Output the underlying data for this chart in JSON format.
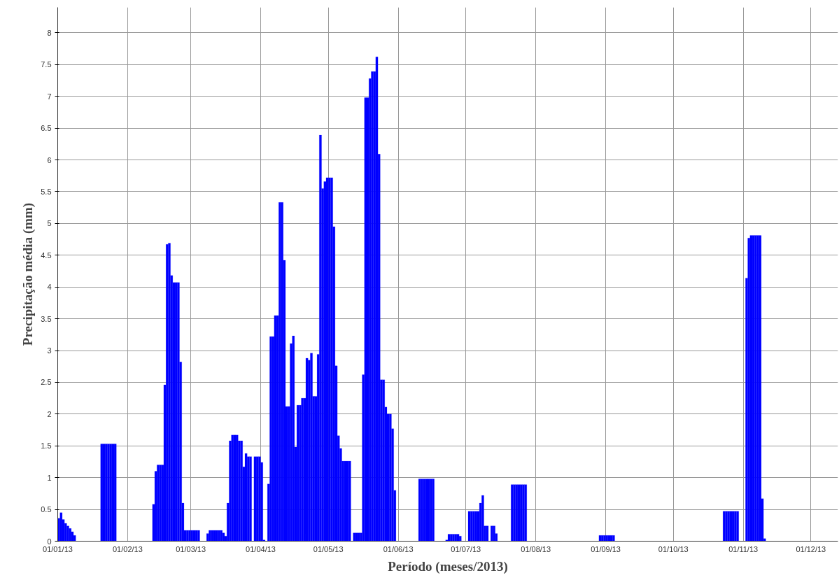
{
  "chart_data": {
    "type": "bar",
    "xlabel": "Período (meses/2013)",
    "ylabel": "Precipitação média (mm)",
    "x": [
      "2013-01-01",
      "2013-01-02",
      "2013-01-03",
      "2013-01-04",
      "2013-01-05",
      "2013-01-06",
      "2013-01-07",
      "2013-01-08",
      "2013-01-20",
      "2013-01-21",
      "2013-01-22",
      "2013-01-23",
      "2013-01-24",
      "2013-01-25",
      "2013-01-26",
      "2013-02-12",
      "2013-02-13",
      "2013-02-14",
      "2013-02-15",
      "2013-02-16",
      "2013-02-17",
      "2013-02-18",
      "2013-02-19",
      "2013-02-20",
      "2013-02-21",
      "2013-02-22",
      "2013-02-23",
      "2013-02-24",
      "2013-02-25",
      "2013-02-26",
      "2013-02-27",
      "2013-02-28",
      "2013-03-01",
      "2013-03-02",
      "2013-03-03",
      "2013-03-04",
      "2013-03-08",
      "2013-03-09",
      "2013-03-10",
      "2013-03-11",
      "2013-03-12",
      "2013-03-13",
      "2013-03-14",
      "2013-03-15",
      "2013-03-16",
      "2013-03-17",
      "2013-03-18",
      "2013-03-19",
      "2013-03-20",
      "2013-03-21",
      "2013-03-22",
      "2013-03-23",
      "2013-03-24",
      "2013-03-25",
      "2013-03-26",
      "2013-03-27",
      "2013-03-29",
      "2013-03-30",
      "2013-03-31",
      "2013-04-01",
      "2013-04-02",
      "2013-04-04",
      "2013-04-05",
      "2013-04-06",
      "2013-04-07",
      "2013-04-08",
      "2013-04-09",
      "2013-04-10",
      "2013-04-11",
      "2013-04-12",
      "2013-04-13",
      "2013-04-14",
      "2013-04-15",
      "2013-04-16",
      "2013-04-17",
      "2013-04-18",
      "2013-04-19",
      "2013-04-20",
      "2013-04-21",
      "2013-04-22",
      "2013-04-23",
      "2013-04-24",
      "2013-04-25",
      "2013-04-26",
      "2013-04-27",
      "2013-04-28",
      "2013-04-29",
      "2013-04-30",
      "2013-05-01",
      "2013-05-02",
      "2013-05-03",
      "2013-05-04",
      "2013-05-05",
      "2013-05-06",
      "2013-05-07",
      "2013-05-08",
      "2013-05-09",
      "2013-05-10",
      "2013-05-12",
      "2013-05-13",
      "2013-05-14",
      "2013-05-15",
      "2013-05-16",
      "2013-05-17",
      "2013-05-18",
      "2013-05-19",
      "2013-05-20",
      "2013-05-21",
      "2013-05-22",
      "2013-05-23",
      "2013-05-24",
      "2013-05-25",
      "2013-05-26",
      "2013-05-27",
      "2013-05-28",
      "2013-05-29",
      "2013-05-30",
      "2013-06-10",
      "2013-06-11",
      "2013-06-12",
      "2013-06-13",
      "2013-06-14",
      "2013-06-15",
      "2013-06-16",
      "2013-06-22",
      "2013-06-23",
      "2013-06-24",
      "2013-06-25",
      "2013-06-26",
      "2013-06-27",
      "2013-06-28",
      "2013-07-02",
      "2013-07-03",
      "2013-07-04",
      "2013-07-05",
      "2013-07-06",
      "2013-07-07",
      "2013-07-08",
      "2013-07-09",
      "2013-07-10",
      "2013-07-12",
      "2013-07-13",
      "2013-07-14",
      "2013-07-21",
      "2013-07-22",
      "2013-07-23",
      "2013-07-24",
      "2013-07-25",
      "2013-07-26",
      "2013-07-27",
      "2013-08-29",
      "2013-08-30",
      "2013-08-31",
      "2013-09-01",
      "2013-09-02",
      "2013-09-03",
      "2013-09-04",
      "2013-10-23",
      "2013-10-24",
      "2013-10-25",
      "2013-10-26",
      "2013-10-27",
      "2013-10-28",
      "2013-10-29",
      "2013-11-02",
      "2013-11-03",
      "2013-11-04",
      "2013-11-05",
      "2013-11-06",
      "2013-11-07",
      "2013-11-08",
      "2013-11-09",
      "2013-11-10"
    ],
    "values": [
      0.36,
      0.45,
      0.34,
      0.28,
      0.24,
      0.2,
      0.15,
      0.09,
      1.53,
      1.53,
      1.53,
      1.53,
      1.53,
      1.53,
      1.53,
      0.58,
      1.1,
      1.2,
      1.2,
      1.2,
      2.46,
      4.67,
      4.69,
      4.18,
      4.07,
      4.07,
      4.07,
      2.82,
      0.6,
      0.17,
      0.17,
      0.17,
      0.17,
      0.17,
      0.17,
      0.17,
      0.12,
      0.17,
      0.17,
      0.17,
      0.17,
      0.17,
      0.17,
      0.13,
      0.08,
      0.6,
      1.58,
      1.67,
      1.67,
      1.67,
      1.58,
      1.58,
      1.17,
      1.38,
      1.33,
      1.33,
      1.33,
      1.33,
      1.33,
      1.24,
      0.02,
      0.9,
      3.22,
      3.22,
      3.55,
      3.55,
      5.33,
      5.33,
      4.42,
      2.12,
      2.12,
      3.11,
      3.23,
      1.48,
      2.14,
      2.14,
      2.25,
      2.25,
      2.88,
      2.85,
      2.96,
      2.28,
      2.28,
      2.94,
      6.39,
      5.55,
      5.66,
      5.72,
      5.72,
      5.72,
      4.95,
      2.76,
      1.66,
      1.46,
      1.26,
      1.26,
      1.26,
      1.26,
      0.13,
      0.13,
      0.13,
      0.13,
      2.62,
      6.98,
      6.98,
      7.28,
      7.39,
      7.39,
      7.62,
      6.09,
      2.54,
      2.54,
      2.11,
      2.0,
      2.0,
      1.77,
      0.8,
      0.98,
      0.98,
      0.98,
      0.98,
      0.98,
      0.98,
      0.98,
      0.02,
      0.11,
      0.11,
      0.11,
      0.11,
      0.11,
      0.08,
      0.47,
      0.47,
      0.47,
      0.47,
      0.47,
      0.6,
      0.72,
      0.24,
      0.24,
      0.24,
      0.24,
      0.12,
      0.89,
      0.89,
      0.89,
      0.89,
      0.89,
      0.89,
      0.89,
      0.09,
      0.09,
      0.09,
      0.09,
      0.09,
      0.09,
      0.09,
      0.47,
      0.47,
      0.47,
      0.47,
      0.47,
      0.47,
      0.47,
      4.14,
      4.77,
      4.81,
      4.81,
      4.81,
      4.81,
      4.81,
      0.67,
      0.04
    ],
    "color": "#0000ff",
    "xlim": [
      "2013-01-01",
      "2013-12-13"
    ],
    "xticks": [
      {
        "value": "2013-01-01",
        "label": "01/01/13"
      },
      {
        "value": "2013-02-01",
        "label": "01/02/13"
      },
      {
        "value": "2013-03-01",
        "label": "01/03/13"
      },
      {
        "value": "2013-04-01",
        "label": "01/04/13"
      },
      {
        "value": "2013-05-01",
        "label": "01/05/13"
      },
      {
        "value": "2013-06-01",
        "label": "01/06/13"
      },
      {
        "value": "2013-07-01",
        "label": "01/07/13"
      },
      {
        "value": "2013-08-01",
        "label": "01/08/13"
      },
      {
        "value": "2013-09-01",
        "label": "01/09/13"
      },
      {
        "value": "2013-10-01",
        "label": "01/10/13"
      },
      {
        "value": "2013-11-01",
        "label": "01/11/13"
      },
      {
        "value": "2013-12-01",
        "label": "01/12/13"
      }
    ],
    "ylim": [
      0,
      8.4
    ],
    "yticks": [
      0,
      0.5,
      1,
      1.5,
      2,
      2.5,
      3,
      3.5,
      4,
      4.5,
      5,
      5.5,
      6,
      6.5,
      7,
      7.5,
      8
    ],
    "grid": true
  }
}
